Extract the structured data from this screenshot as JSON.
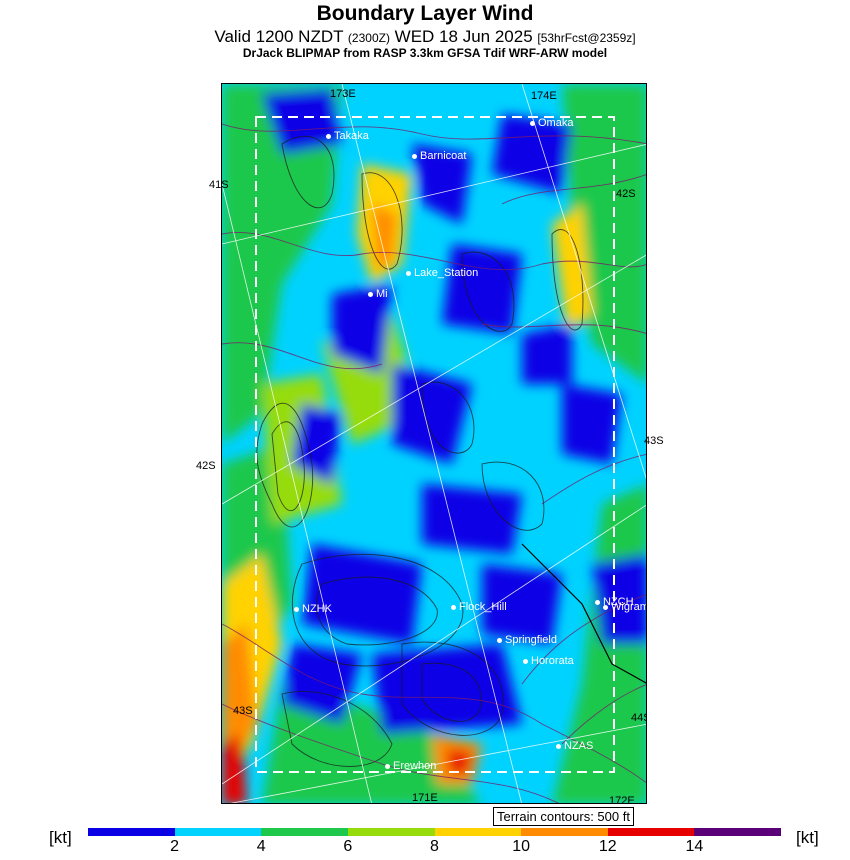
{
  "title": "Boundary Layer Wind",
  "subtitle": {
    "main_prefix": "Valid 1200 NZDT ",
    "utc": "(2300Z)",
    "main_suffix": " WED 18 Jun 2025 ",
    "forecast": "[53hrFcst@2359z]"
  },
  "model_line": "DrJack BLIPMAP from RASP 3.3km GFSA Tdif WRF-ARW model",
  "grid_labels": {
    "lon_173e": "173E",
    "lon_174e": "174E",
    "lon_171e": "171E",
    "lon_172e": "172E",
    "lat_41s": "41S",
    "lat_42s_left": "42S",
    "lat_42s_right": "42S",
    "lat_43s_left": "43S",
    "lat_43s_right": "43S",
    "lat_44s": "44S"
  },
  "places": {
    "takaka": "Takaka",
    "omaka": "Omaka",
    "barnicoat": "Barnicoat",
    "lake_station": "Lake_Station",
    "mi": "Mi",
    "nzhk": "NZHK",
    "flock_hill": "Flock_Hill",
    "nzch": "NZCH",
    "wigram": "Wigram",
    "springfield": "Springfield",
    "hororata": "Hororata",
    "nzas": "NZAS",
    "erewhon": "Erewhon"
  },
  "terrain_note": "Terrain contours: 500 ft",
  "colorbar": {
    "unit_left": "[kt]",
    "unit_right": "[kt]",
    "ticks": [
      "2",
      "4",
      "6",
      "8",
      "10",
      "12",
      "14"
    ],
    "colors": [
      "#0a00e6",
      "#00d2ff",
      "#1ec84b",
      "#96dc0a",
      "#ffd200",
      "#ff8c00",
      "#e60000",
      "#5a0078"
    ]
  }
}
